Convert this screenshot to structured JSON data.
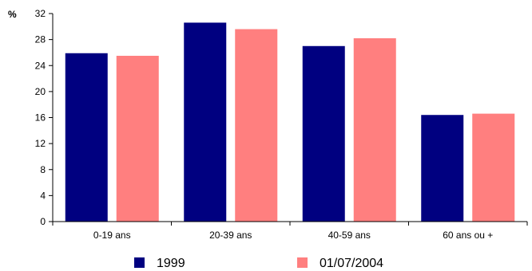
{
  "chart_data": {
    "type": "bar",
    "unit_label": "%",
    "categories": [
      "0-19 ans",
      "20-39 ans",
      "40-59 ans",
      "60 ans ou +"
    ],
    "series": [
      {
        "name": "1999",
        "color": "#000080",
        "values": [
          25.9,
          30.6,
          27.0,
          16.4
        ]
      },
      {
        "name": "01/07/2004",
        "color": "#FF7F7F",
        "values": [
          25.5,
          29.6,
          28.2,
          16.6
        ]
      }
    ],
    "ylim": [
      0,
      32
    ],
    "yticks": [
      0,
      4,
      8,
      12,
      16,
      20,
      24,
      28,
      32
    ],
    "grid": false,
    "legend_position": "bottom"
  }
}
